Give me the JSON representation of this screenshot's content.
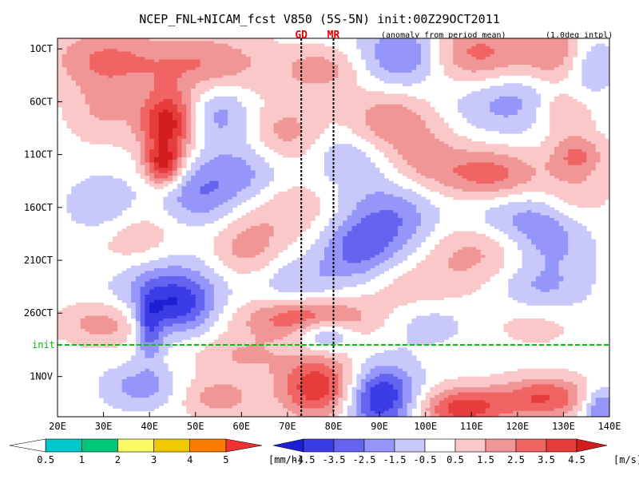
{
  "chart_data": {
    "type": "heatmap",
    "title": "NCEP_FNL+NICAM_fcst V850 (5S-5N) init:00Z29OCT2011",
    "subtitle_left": "(anomaly from period mean)",
    "subtitle_right": "(1.0deg intpl)",
    "markers": [
      {
        "label": "GD",
        "lon": 73
      },
      {
        "label": "MR",
        "lon": 80
      }
    ],
    "init_label": "init",
    "xlim": [
      20,
      140
    ],
    "x_ticks": [
      {
        "value": 20,
        "label": "20E"
      },
      {
        "value": 30,
        "label": "30E"
      },
      {
        "value": 40,
        "label": "40E"
      },
      {
        "value": 50,
        "label": "50E"
      },
      {
        "value": 60,
        "label": "60E"
      },
      {
        "value": 70,
        "label": "70E"
      },
      {
        "value": 80,
        "label": "80E"
      },
      {
        "value": 90,
        "label": "90E"
      },
      {
        "value": 100,
        "label": "100E"
      },
      {
        "value": 110,
        "label": "110E"
      },
      {
        "value": 120,
        "label": "120E"
      },
      {
        "value": 130,
        "label": "130E"
      },
      {
        "value": 140,
        "label": "140E"
      }
    ],
    "y_ticks": [
      {
        "day": 1,
        "label": "1OCT"
      },
      {
        "day": 6,
        "label": "6OCT"
      },
      {
        "day": 11,
        "label": "11OCT"
      },
      {
        "day": 16,
        "label": "16OCT"
      },
      {
        "day": 21,
        "label": "21OCT"
      },
      {
        "day": 26,
        "label": "26OCT"
      },
      {
        "day": 32,
        "label": "1NOV"
      }
    ],
    "init_day": 29,
    "time_range_days": [
      0,
      35.8
    ],
    "precip_colorbar": {
      "colors": [
        "#ffffff",
        "#00c8c8",
        "#00c87a",
        "#fafa64",
        "#f0c800",
        "#fa7d00",
        "#f03232"
      ],
      "labels": [
        "0.5",
        "1",
        "2",
        "3",
        "4",
        "5"
      ],
      "unit": "[mm/h]"
    },
    "wind_colorbar": {
      "colors": [
        "#1e1ed2",
        "#3c3ce6",
        "#6464f0",
        "#9696fa",
        "#c8c8fa",
        "#ffffff",
        "#fac8c8",
        "#f09696",
        "#f06464",
        "#e63c3c",
        "#d21e1e"
      ],
      "labels": [
        "-4.5",
        "-3.5",
        "-2.5",
        "-1.5",
        "-0.5",
        "0.5",
        "1.5",
        "2.5",
        "3.5",
        "4.5"
      ],
      "unit": "[m/s]"
    },
    "anomaly_features": [
      {
        "lon": 96,
        "day": 1.5,
        "value": -3.5,
        "rlon": 9,
        "rday": 3
      },
      {
        "lon": 110,
        "day": 1.5,
        "value": 3.0,
        "rlon": 14,
        "rday": 3
      },
      {
        "lon": 131,
        "day": 1.5,
        "value": 3.0,
        "rlon": 8,
        "rday": 3
      },
      {
        "lon": 135,
        "day": 2,
        "value": -3.0,
        "rlon": 6,
        "rday": 3
      },
      {
        "lon": 30,
        "day": 2,
        "value": 2.5,
        "rlon": 12,
        "rday": 3
      },
      {
        "lon": 52,
        "day": 2.5,
        "value": 2.5,
        "rlon": 14,
        "rday": 3
      },
      {
        "lon": 77,
        "day": 3,
        "value": 2.0,
        "rlon": 8,
        "rday": 2
      },
      {
        "lon": 44,
        "day": 8,
        "value": 5.0,
        "rlon": 6,
        "rday": 3
      },
      {
        "lon": 30,
        "day": 7,
        "value": 1.5,
        "rlon": 8,
        "rday": 3
      },
      {
        "lon": 55,
        "day": 7,
        "value": -2.0,
        "rlon": 7,
        "rday": 3
      },
      {
        "lon": 92,
        "day": 8,
        "value": 2.5,
        "rlon": 10,
        "rday": 3
      },
      {
        "lon": 70,
        "day": 9,
        "value": 2.0,
        "rlon": 8,
        "rday": 3
      },
      {
        "lon": 118,
        "day": 6,
        "value": -2.0,
        "rlon": 12,
        "rday": 3
      },
      {
        "lon": 130,
        "day": 7,
        "value": 2.0,
        "rlon": 6,
        "rday": 2
      },
      {
        "lon": 43,
        "day": 12,
        "value": 4.5,
        "rlon": 4,
        "rday": 2
      },
      {
        "lon": 84,
        "day": 11,
        "value": -1.5,
        "rlon": 10,
        "rday": 3
      },
      {
        "lon": 100,
        "day": 12,
        "value": 2.0,
        "rlon": 10,
        "rday": 3
      },
      {
        "lon": 115,
        "day": 13,
        "value": 3.0,
        "rlon": 10,
        "rday": 2.5
      },
      {
        "lon": 133,
        "day": 11,
        "value": 2.5,
        "rlon": 6,
        "rday": 2
      },
      {
        "lon": 60,
        "day": 13,
        "value": -2.0,
        "rlon": 10,
        "rday": 3
      },
      {
        "lon": 30,
        "day": 16,
        "value": -1.5,
        "rlon": 8,
        "rday": 3
      },
      {
        "lon": 50,
        "day": 15,
        "value": -2.0,
        "rlon": 8,
        "rday": 3
      },
      {
        "lon": 70,
        "day": 16,
        "value": 1.5,
        "rlon": 10,
        "rday": 3
      },
      {
        "lon": 93,
        "day": 17,
        "value": -2.5,
        "rlon": 10,
        "rday": 4
      },
      {
        "lon": 120,
        "day": 17,
        "value": -2.0,
        "rlon": 12,
        "rday": 3
      },
      {
        "lon": 132,
        "day": 15,
        "value": 1.5,
        "rlon": 8,
        "rday": 3
      },
      {
        "lon": 37,
        "day": 19,
        "value": 1.5,
        "rlon": 10,
        "rday": 3
      },
      {
        "lon": 61,
        "day": 20,
        "value": 2.0,
        "rlon": 8,
        "rday": 3
      },
      {
        "lon": 85,
        "day": 20,
        "value": -2.5,
        "rlon": 8,
        "rday": 3
      },
      {
        "lon": 111,
        "day": 20,
        "value": 2.0,
        "rlon": 12,
        "rday": 3
      },
      {
        "lon": 128,
        "day": 19,
        "value": -1.5,
        "rlon": 8,
        "rday": 3
      },
      {
        "lon": 44,
        "day": 23,
        "value": -2.0,
        "rlon": 12,
        "rday": 3
      },
      {
        "lon": 72,
        "day": 23,
        "value": -1.5,
        "rlon": 10,
        "rday": 2.5
      },
      {
        "lon": 98,
        "day": 24,
        "value": 1.5,
        "rlon": 12,
        "rday": 3
      },
      {
        "lon": 125,
        "day": 24,
        "value": -2.0,
        "rlon": 10,
        "rday": 3
      },
      {
        "lon": 46,
        "day": 25.5,
        "value": -3.5,
        "rlon": 8,
        "rday": 2.5
      },
      {
        "lon": 40,
        "day": 27.5,
        "value": -3.0,
        "rlon": 3,
        "rday": 3
      },
      {
        "lon": 74,
        "day": 26.5,
        "value": 3.5,
        "rlon": 14,
        "rday": 2
      },
      {
        "lon": 100,
        "day": 26.5,
        "value": -1.5,
        "rlon": 10,
        "rday": 2.5
      },
      {
        "lon": 124,
        "day": 26.5,
        "value": 1.5,
        "rlon": 10,
        "rday": 2.5
      },
      {
        "lon": 78,
        "day": 28,
        "value": -3.0,
        "rlon": 6,
        "rday": 1.5
      },
      {
        "lon": 30,
        "day": 27,
        "value": 2.0,
        "rlon": 10,
        "rday": 2
      },
      {
        "lon": 60,
        "day": 30,
        "value": 1.5,
        "rlon": 10,
        "rday": 2
      },
      {
        "lon": 77,
        "day": 33,
        "value": 4.5,
        "rlon": 9,
        "rday": 3
      },
      {
        "lon": 90,
        "day": 34,
        "value": -5.0,
        "rlon": 8,
        "rday": 3
      },
      {
        "lon": 108,
        "day": 35,
        "value": 4.0,
        "rlon": 10,
        "rday": 2
      },
      {
        "lon": 126,
        "day": 34,
        "value": 3.5,
        "rlon": 10,
        "rday": 2
      },
      {
        "lon": 38,
        "day": 33,
        "value": -2.0,
        "rlon": 8,
        "rday": 2
      },
      {
        "lon": 55,
        "day": 34,
        "value": 2.0,
        "rlon": 8,
        "rday": 2
      },
      {
        "lon": 138,
        "day": 35,
        "value": -3.0,
        "rlon": 4,
        "rday": 2
      }
    ]
  }
}
